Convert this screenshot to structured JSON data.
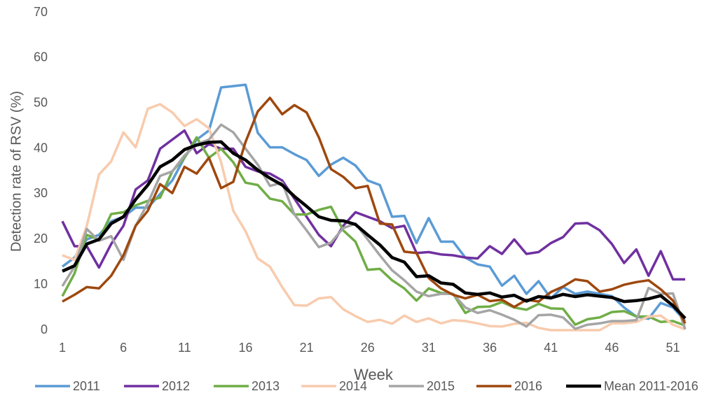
{
  "chart_data": {
    "type": "line",
    "xlabel": "Week",
    "ylabel": "Detection rate of RSV (%)",
    "x": [
      1,
      2,
      3,
      4,
      5,
      6,
      7,
      8,
      9,
      10,
      11,
      12,
      13,
      14,
      15,
      16,
      17,
      18,
      19,
      20,
      21,
      22,
      23,
      24,
      25,
      26,
      27,
      28,
      29,
      30,
      31,
      32,
      33,
      34,
      35,
      36,
      37,
      38,
      39,
      40,
      41,
      42,
      43,
      44,
      45,
      46,
      47,
      48,
      49,
      50,
      51,
      52
    ],
    "xlim": [
      1,
      52
    ],
    "xticks": [
      1,
      6,
      11,
      16,
      21,
      26,
      31,
      36,
      41,
      46,
      51
    ],
    "ylim": [
      0,
      70
    ],
    "yticks": [
      0,
      10,
      20,
      30,
      40,
      50,
      60,
      70
    ],
    "grid": false,
    "legend": "bottom",
    "series": [
      {
        "name": "2011",
        "color": "#5b9bd5",
        "width": 3.5,
        "values": [
          14,
          16,
          20,
          21,
          24,
          25,
          27,
          27,
          30,
          33,
          38,
          42,
          44,
          53.5,
          53.8,
          54.1,
          43.5,
          40.3,
          40.3,
          38.8,
          37.5,
          34,
          36.5,
          38,
          36.3,
          33,
          32,
          25,
          25.2,
          19.2,
          24.7,
          19.5,
          19.5,
          16,
          14.5,
          14,
          9.8,
          12,
          8,
          10.8,
          7,
          9.5,
          8,
          8.5,
          8,
          7.5,
          5,
          3,
          2.5,
          6,
          5,
          2
        ]
      },
      {
        "name": "2012",
        "color": "#7030a0",
        "width": 3.5,
        "values": [
          24,
          18.5,
          18.5,
          13.8,
          19,
          23,
          31,
          33,
          40,
          42,
          44,
          39,
          41,
          40,
          40,
          36,
          35,
          34.5,
          33,
          29,
          25,
          21,
          18.5,
          23,
          26,
          25,
          24,
          22.5,
          23,
          17,
          17.2,
          16.7,
          16.5,
          16,
          15.8,
          18.5,
          16.8,
          20,
          16.8,
          17.2,
          19.2,
          20.5,
          23.5,
          23.6,
          22,
          19,
          14.8,
          17.8,
          12,
          17.4,
          11.2,
          11.2
        ]
      },
      {
        "name": "2013",
        "color": "#70ad47",
        "width": 3.5,
        "values": [
          7.5,
          12.5,
          21,
          20,
          25.6,
          26,
          27.5,
          28.5,
          29.2,
          35,
          38,
          42.5,
          38,
          40,
          37,
          32.5,
          32,
          29,
          28.4,
          25.5,
          25.5,
          26.5,
          27.2,
          22,
          19.5,
          13.3,
          13.5,
          11,
          9.2,
          6.5,
          9.2,
          8.2,
          8,
          3.8,
          5.1,
          5.2,
          6.2,
          5,
          4.5,
          5.8,
          4.8,
          4.7,
          1.2,
          2.4,
          2.8,
          4,
          4.2,
          3,
          3,
          1.8,
          2,
          1
        ]
      },
      {
        "name": "2014",
        "color": "#f8cbad",
        "width": 3.5,
        "values": [
          16.5,
          15.5,
          23,
          34.3,
          37.2,
          43.6,
          40.3,
          48.8,
          49.8,
          48,
          45,
          46.5,
          44.5,
          37,
          26.3,
          21.8,
          15.8,
          14,
          9.5,
          5.5,
          5.4,
          7,
          7.3,
          4.6,
          3.1,
          1.8,
          2.3,
          1.4,
          3.2,
          1.8,
          2.6,
          1.5,
          2.2,
          2,
          1.5,
          0.9,
          0.8,
          1.4,
          1.6,
          0.5,
          0,
          0,
          0,
          0,
          0,
          1.5,
          1.5,
          1.8,
          3,
          3.2,
          1.2,
          0.2
        ]
      },
      {
        "name": "2015",
        "color": "#a5a5a5",
        "width": 3.5,
        "values": [
          9.7,
          14,
          22.3,
          19.7,
          20.7,
          15.5,
          23,
          28,
          34,
          35,
          38.5,
          41,
          42,
          45.3,
          43.6,
          40,
          36.5,
          31.8,
          32.5,
          25.5,
          22,
          18.3,
          19.3,
          22.5,
          23.5,
          20,
          16.5,
          13.2,
          11,
          8.5,
          7.5,
          8,
          8,
          5,
          3.8,
          4.4,
          3.4,
          2.3,
          0.8,
          3.3,
          3.4,
          2.8,
          0.3,
          1.2,
          1.5,
          2,
          2,
          2.2,
          9.3,
          8,
          8.1,
          0.2
        ]
      },
      {
        "name": "2016",
        "color": "#9e480e",
        "width": 3.5,
        "values": [
          6.3,
          7.8,
          9.5,
          9.2,
          12,
          16.5,
          23,
          26.3,
          32.2,
          30.2,
          36,
          34.5,
          38,
          31.3,
          32.7,
          41.5,
          48.2,
          51.2,
          47.6,
          49.6,
          48,
          42.5,
          35.5,
          33.8,
          31.3,
          31.8,
          23.5,
          23.3,
          17.3,
          17,
          11.5,
          9.2,
          7.8,
          7,
          7.8,
          6.4,
          6.7,
          5.1,
          6.7,
          6.3,
          8.4,
          9.6,
          11.2,
          10.8,
          8.5,
          9,
          10,
          10.6,
          11,
          9,
          6.5,
          1.5
        ]
      },
      {
        "name": "Mean 2011-2016",
        "color": "#000000",
        "width": 4.5,
        "values": [
          13,
          14.2,
          19,
          20,
          23.5,
          25,
          28.8,
          32,
          36,
          37.5,
          39.8,
          40.8,
          41.4,
          41.5,
          39,
          37.5,
          35.3,
          33.5,
          32,
          29.5,
          27.3,
          25,
          24.2,
          24.1,
          23.3,
          21,
          18.8,
          16,
          15,
          11.8,
          12,
          10.4,
          10.1,
          8.2,
          7.9,
          8.2,
          7.3,
          7.7,
          6.4,
          7.4,
          7.1,
          7.9,
          7.4,
          7.8,
          7.5,
          7.2,
          6.3,
          6.5,
          6.9,
          7.6,
          5.4,
          2.6
        ]
      }
    ]
  }
}
